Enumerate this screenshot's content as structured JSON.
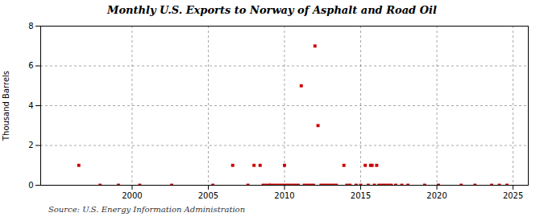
{
  "chart_data": {
    "type": "scatter",
    "title": "Monthly U.S. Exports to Norway of Asphalt and Road Oil",
    "ylabel": "Thousand Barrels",
    "source": "Source: U.S. Energy Information Administration",
    "color": "#cc0000",
    "marker": "square",
    "grid": true,
    "xlim": [
      1994,
      2026
    ],
    "ylim": [
      0,
      8
    ],
    "xticks": [
      2000,
      2005,
      2010,
      2015,
      2020,
      2025
    ],
    "yticks": [
      0,
      2,
      4,
      6,
      8
    ],
    "x": [
      1996.5,
      1997.9,
      1999.1,
      2000.5,
      2002.6,
      2005.3,
      2006.6,
      2007.6,
      2008.0,
      2008.4,
      2008.6,
      2008.8,
      2009.0,
      2009.1,
      2009.3,
      2009.5,
      2009.7,
      2009.9,
      2010.0,
      2010.1,
      2010.3,
      2010.5,
      2010.7,
      2010.9,
      2011.1,
      2011.3,
      2011.5,
      2011.7,
      2011.9,
      2012.0,
      2012.2,
      2012.4,
      2012.6,
      2012.8,
      2013.0,
      2013.2,
      2013.4,
      2013.9,
      2014.1,
      2014.3,
      2014.7,
      2015.0,
      2015.3,
      2015.5,
      2015.65,
      2015.75,
      2015.9,
      2016.05,
      2016.2,
      2016.4,
      2016.6,
      2016.8,
      2017.0,
      2017.3,
      2017.7,
      2018.1,
      2019.2,
      2020.1,
      2021.6,
      2022.5,
      2023.6,
      2024.1,
      2024.6
    ],
    "values": [
      1,
      0,
      0,
      0,
      0,
      0,
      1,
      0,
      1,
      1,
      0,
      0,
      0,
      0,
      0,
      0,
      0,
      0,
      1,
      0,
      0,
      0,
      0,
      0,
      5,
      0,
      0,
      0,
      0,
      7,
      3,
      0,
      0,
      0,
      0,
      0,
      0,
      1,
      0,
      0,
      0,
      0,
      1,
      0,
      1,
      1,
      0,
      1,
      0,
      0,
      0,
      0,
      0,
      0,
      0,
      0,
      0,
      0,
      0,
      0,
      0,
      0,
      0
    ]
  }
}
